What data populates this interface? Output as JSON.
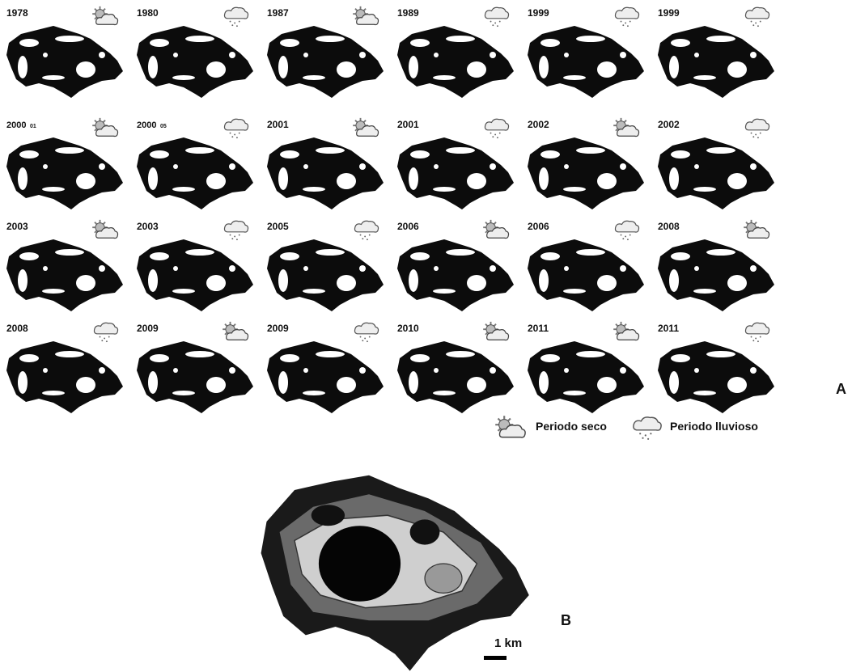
{
  "panels": [
    {
      "label": "1978",
      "icon": "dry"
    },
    {
      "label": "1980",
      "icon": "rain"
    },
    {
      "label": "1987",
      "icon": "dry"
    },
    {
      "label": "1989",
      "icon": "rain"
    },
    {
      "label": "1999",
      "icon": "rain"
    },
    {
      "label": "1999",
      "icon": "rain"
    },
    {
      "label": "2000",
      "sub": "01",
      "icon": "dry"
    },
    {
      "label": "2000",
      "sub": "05",
      "icon": "rain"
    },
    {
      "label": "2001",
      "icon": "dry"
    },
    {
      "label": "2001",
      "icon": "rain"
    },
    {
      "label": "2002",
      "icon": "dry"
    },
    {
      "label": "2002",
      "icon": "rain"
    },
    {
      "label": "2003",
      "icon": "dry"
    },
    {
      "label": "2003",
      "icon": "rain"
    },
    {
      "label": "2005",
      "icon": "rain"
    },
    {
      "label": "2006",
      "icon": "dry"
    },
    {
      "label": "2006",
      "icon": "rain"
    },
    {
      "label": "2008",
      "icon": "dry"
    },
    {
      "label": "2008",
      "icon": "rain"
    },
    {
      "label": "2009",
      "icon": "dry"
    },
    {
      "label": "2009",
      "icon": "rain"
    },
    {
      "label": "2010",
      "icon": "dry"
    },
    {
      "label": "2011",
      "icon": "dry"
    },
    {
      "label": "2011",
      "icon": "rain"
    }
  ],
  "legend": {
    "dry": "Periodo seco",
    "rain": "Periodo lluvioso"
  },
  "labels": {
    "a": "A",
    "b": "B"
  },
  "scale": "1 km"
}
